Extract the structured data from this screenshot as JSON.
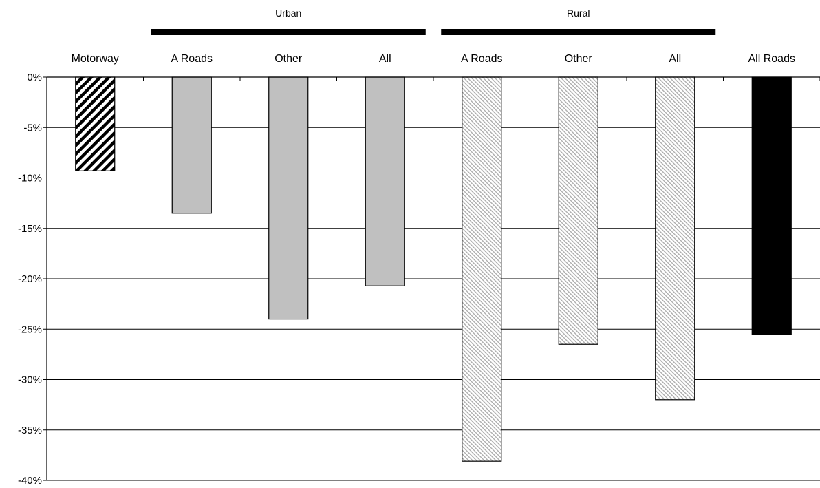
{
  "chart_data": {
    "type": "bar",
    "title": "",
    "xlabel": "",
    "ylabel": "",
    "ylim": [
      -40,
      0
    ],
    "y_ticks": [
      0,
      -5,
      -10,
      -15,
      -20,
      -25,
      -30,
      -35,
      -40
    ],
    "y_tick_labels": [
      "0%",
      "-5%",
      "-10%",
      "-15%",
      "-20%",
      "-25%",
      "-30%",
      "-35%",
      "-40%"
    ],
    "grid": true,
    "x_axis_position": "top",
    "categories": [
      "Motorway",
      "A Roads",
      "Other",
      "All",
      "A Roads",
      "Other",
      "All",
      "All Roads"
    ],
    "values": [
      -9.3,
      -13.5,
      -24.0,
      -20.7,
      -38.1,
      -26.5,
      -32.0,
      -25.5
    ],
    "bar_styles": [
      "dark-diagonal-hatch",
      "solid-grey",
      "solid-grey",
      "solid-grey",
      "light-diagonal-hatch",
      "light-diagonal-hatch",
      "light-diagonal-hatch",
      "solid-black"
    ],
    "groups": [
      {
        "label": "Urban",
        "category_indices": [
          1,
          2,
          3
        ]
      },
      {
        "label": "Rural",
        "category_indices": [
          4,
          5,
          6
        ]
      }
    ],
    "colors": {
      "grey_fill": "#c0c0c0",
      "black_fill": "#000000",
      "hatch_light": "#b0b0b0",
      "gridline": "#000000"
    }
  }
}
